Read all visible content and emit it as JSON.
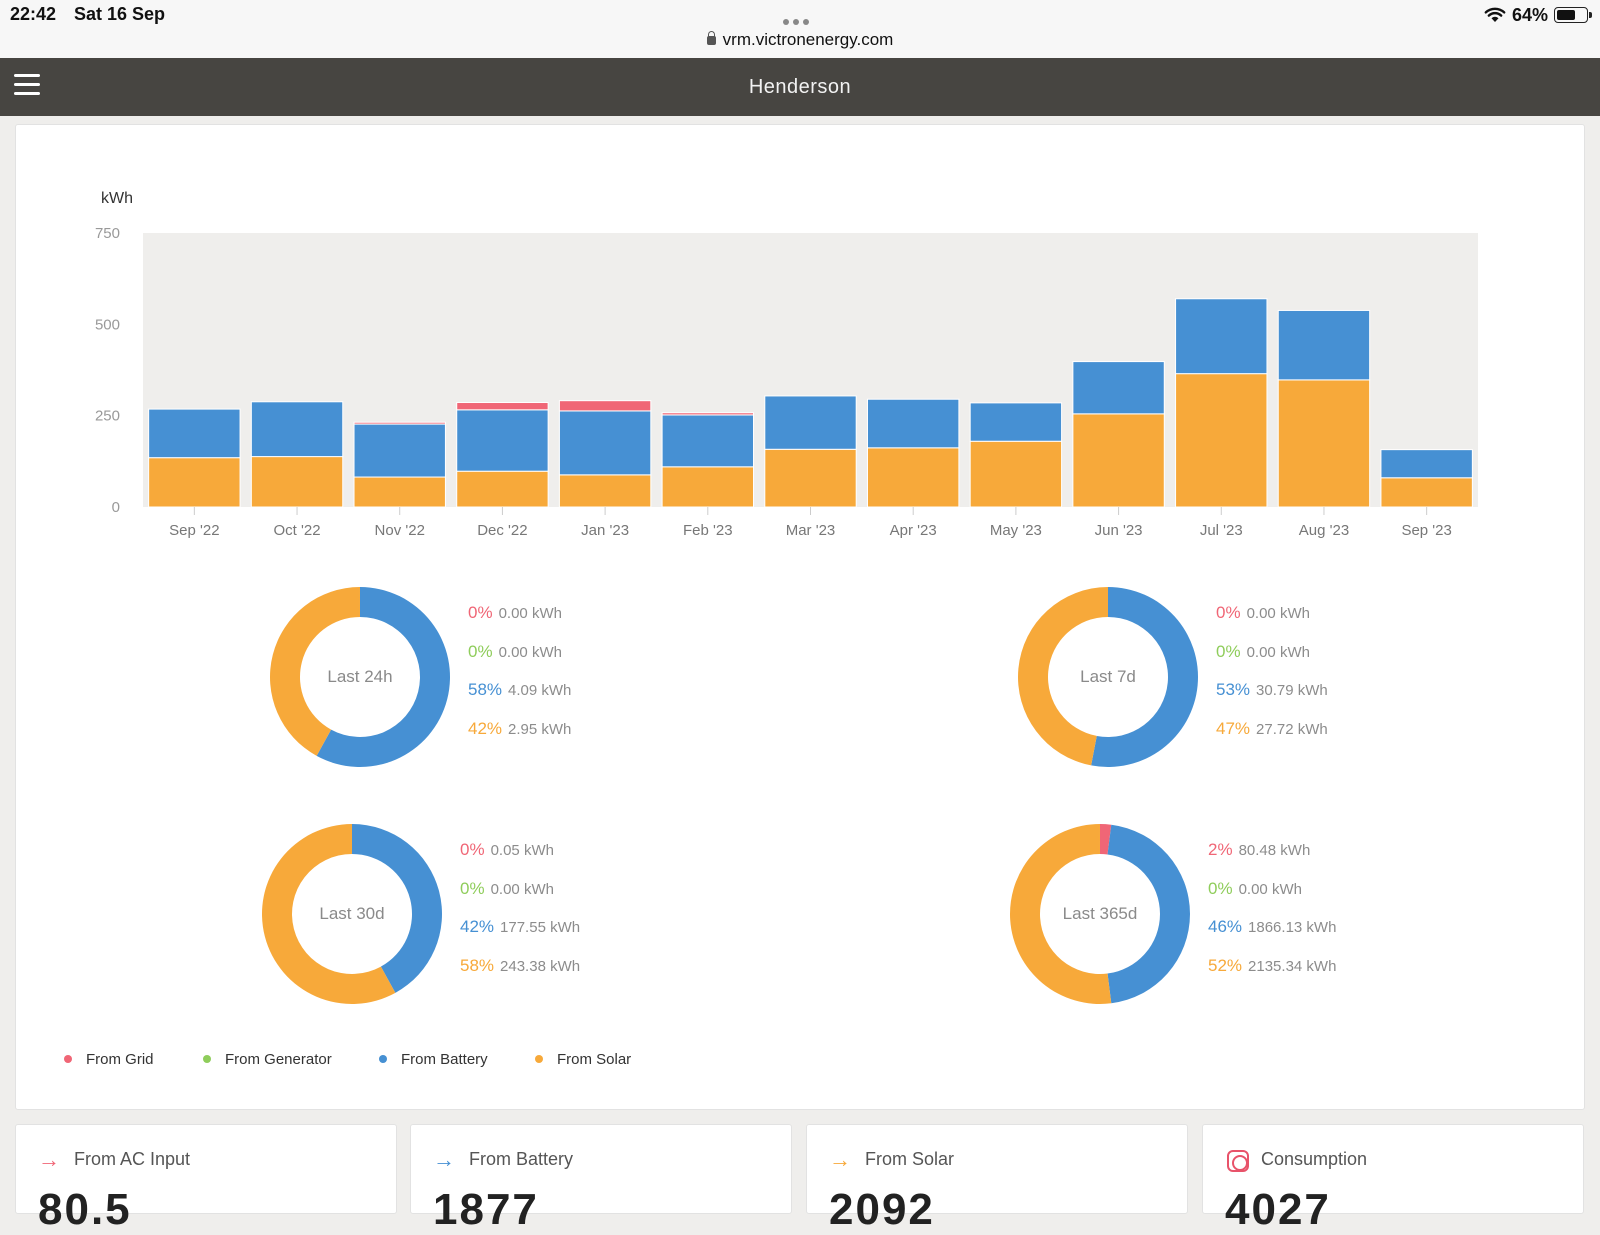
{
  "status_bar": {
    "time": "22:42",
    "date": "Sat 16 Sep",
    "url": "vrm.victronenergy.com",
    "battery": "64%",
    "battery_level": 0.64
  },
  "header": {
    "title": "Henderson"
  },
  "colors": {
    "grid": "#f06676",
    "generator": "#8fcd5b",
    "battery": "#4690d3",
    "solar": "#f7a93a"
  },
  "chart_data": {
    "type": "bar",
    "stacked": true,
    "ylabel": "kWh",
    "ylim": [
      0,
      750
    ],
    "yticks": [
      0,
      250,
      500,
      750
    ],
    "categories": [
      "Sep '22",
      "Oct '22",
      "Nov '22",
      "Dec '22",
      "Jan '23",
      "Feb '23",
      "Mar '23",
      "Apr '23",
      "May '23",
      "Jun '23",
      "Jul '23",
      "Aug '23",
      "Sep '23"
    ],
    "series": [
      {
        "name": "From Solar",
        "values": [
          135,
          138,
          82,
          98,
          88,
          110,
          158,
          162,
          180,
          255,
          365,
          348,
          80
        ]
      },
      {
        "name": "From Battery",
        "values": [
          133,
          150,
          145,
          168,
          175,
          142,
          146,
          133,
          105,
          143,
          205,
          190,
          77
        ]
      },
      {
        "name": "From Grid",
        "values": [
          0,
          0,
          5,
          20,
          28,
          6,
          0,
          0,
          0,
          0,
          0,
          0,
          0
        ]
      },
      {
        "name": "From Generator",
        "values": [
          0,
          0,
          0,
          0,
          0,
          0,
          0,
          0,
          0,
          0,
          0,
          0,
          0
        ]
      }
    ]
  },
  "donuts": [
    {
      "label": "Last 24h",
      "rows": [
        {
          "pct": "0%",
          "kwh": "0.00 kWh",
          "key": "grid"
        },
        {
          "pct": "0%",
          "kwh": "0.00 kWh",
          "key": "generator"
        },
        {
          "pct": "58%",
          "kwh": "4.09 kWh",
          "key": "battery"
        },
        {
          "pct": "42%",
          "kwh": "2.95 kWh",
          "key": "solar"
        }
      ],
      "fractions": {
        "grid": 0,
        "generator": 0,
        "battery": 0.58,
        "solar": 0.42
      }
    },
    {
      "label": "Last 7d",
      "rows": [
        {
          "pct": "0%",
          "kwh": "0.00 kWh",
          "key": "grid"
        },
        {
          "pct": "0%",
          "kwh": "0.00 kWh",
          "key": "generator"
        },
        {
          "pct": "53%",
          "kwh": "30.79 kWh",
          "key": "battery"
        },
        {
          "pct": "47%",
          "kwh": "27.72 kWh",
          "key": "solar"
        }
      ],
      "fractions": {
        "grid": 0,
        "generator": 0,
        "battery": 0.53,
        "solar": 0.47
      }
    },
    {
      "label": "Last 30d",
      "rows": [
        {
          "pct": "0%",
          "kwh": "0.05 kWh",
          "key": "grid"
        },
        {
          "pct": "0%",
          "kwh": "0.00 kWh",
          "key": "generator"
        },
        {
          "pct": "42%",
          "kwh": "177.55 kWh",
          "key": "battery"
        },
        {
          "pct": "58%",
          "kwh": "243.38 kWh",
          "key": "solar"
        }
      ],
      "fractions": {
        "grid": 0,
        "generator": 0,
        "battery": 0.42,
        "solar": 0.58
      }
    },
    {
      "label": "Last 365d",
      "rows": [
        {
          "pct": "2%",
          "kwh": "80.48 kWh",
          "key": "grid"
        },
        {
          "pct": "0%",
          "kwh": "0.00 kWh",
          "key": "generator"
        },
        {
          "pct": "46%",
          "kwh": "1866.13 kWh",
          "key": "battery"
        },
        {
          "pct": "52%",
          "kwh": "2135.34 kWh",
          "key": "solar"
        }
      ],
      "fractions": {
        "grid": 0.02,
        "generator": 0,
        "battery": 0.46,
        "solar": 0.52
      }
    }
  ],
  "legend": [
    {
      "label": "From Grid",
      "key": "grid"
    },
    {
      "label": "From Generator",
      "key": "generator"
    },
    {
      "label": "From Battery",
      "key": "battery"
    },
    {
      "label": "From Solar",
      "key": "solar"
    }
  ],
  "cards": [
    {
      "title": "From AC Input",
      "value": "80.5",
      "icon": "arrow-right-icon",
      "key": "grid"
    },
    {
      "title": "From Battery",
      "value": "1877",
      "icon": "arrow-right-icon",
      "key": "battery"
    },
    {
      "title": "From Solar",
      "value": "2092",
      "icon": "arrow-right-icon",
      "key": "solar"
    },
    {
      "title": "Consumption",
      "value": "4027",
      "icon": "plug-icon",
      "key": "grid"
    }
  ]
}
